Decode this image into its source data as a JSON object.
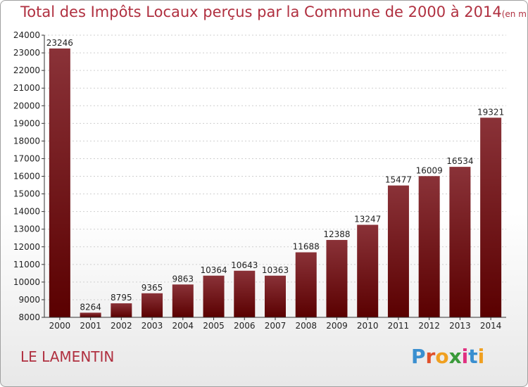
{
  "header": {
    "title": "Total des Impôts Locaux perçus par la Commune de 2000 à 2014",
    "unit": "(en milliers d'€)"
  },
  "footer": {
    "commune": "LE LAMENTIN",
    "logo_text": "Proxiti",
    "logo_colors": [
      "#3a8fd0",
      "#e0502a",
      "#f0a020",
      "#3a9a3a",
      "#e03080",
      "#3a8fd0",
      "#f0a020"
    ]
  },
  "colors": {
    "bar_top": "#8a3238",
    "bar_bottom": "#5a0000",
    "accent": "#b03040"
  },
  "chart_data": {
    "type": "bar",
    "title": "Total des Impôts Locaux perçus par la Commune de 2000 à 2014",
    "categories": [
      "2000",
      "2001",
      "2002",
      "2003",
      "2004",
      "2005",
      "2006",
      "2007",
      "2008",
      "2009",
      "2010",
      "2011",
      "2012",
      "2013",
      "2014"
    ],
    "values": [
      23246,
      8264,
      8795,
      9365,
      9863,
      10364,
      10643,
      10363,
      11688,
      12388,
      13247,
      15477,
      16009,
      16534,
      19321
    ],
    "ylim": [
      8000,
      24000
    ],
    "yticks": [
      8000,
      9000,
      10000,
      11000,
      12000,
      13000,
      14000,
      15000,
      16000,
      17000,
      18000,
      19000,
      20000,
      21000,
      22000,
      23000,
      24000
    ],
    "grid": true,
    "legend": "none"
  }
}
